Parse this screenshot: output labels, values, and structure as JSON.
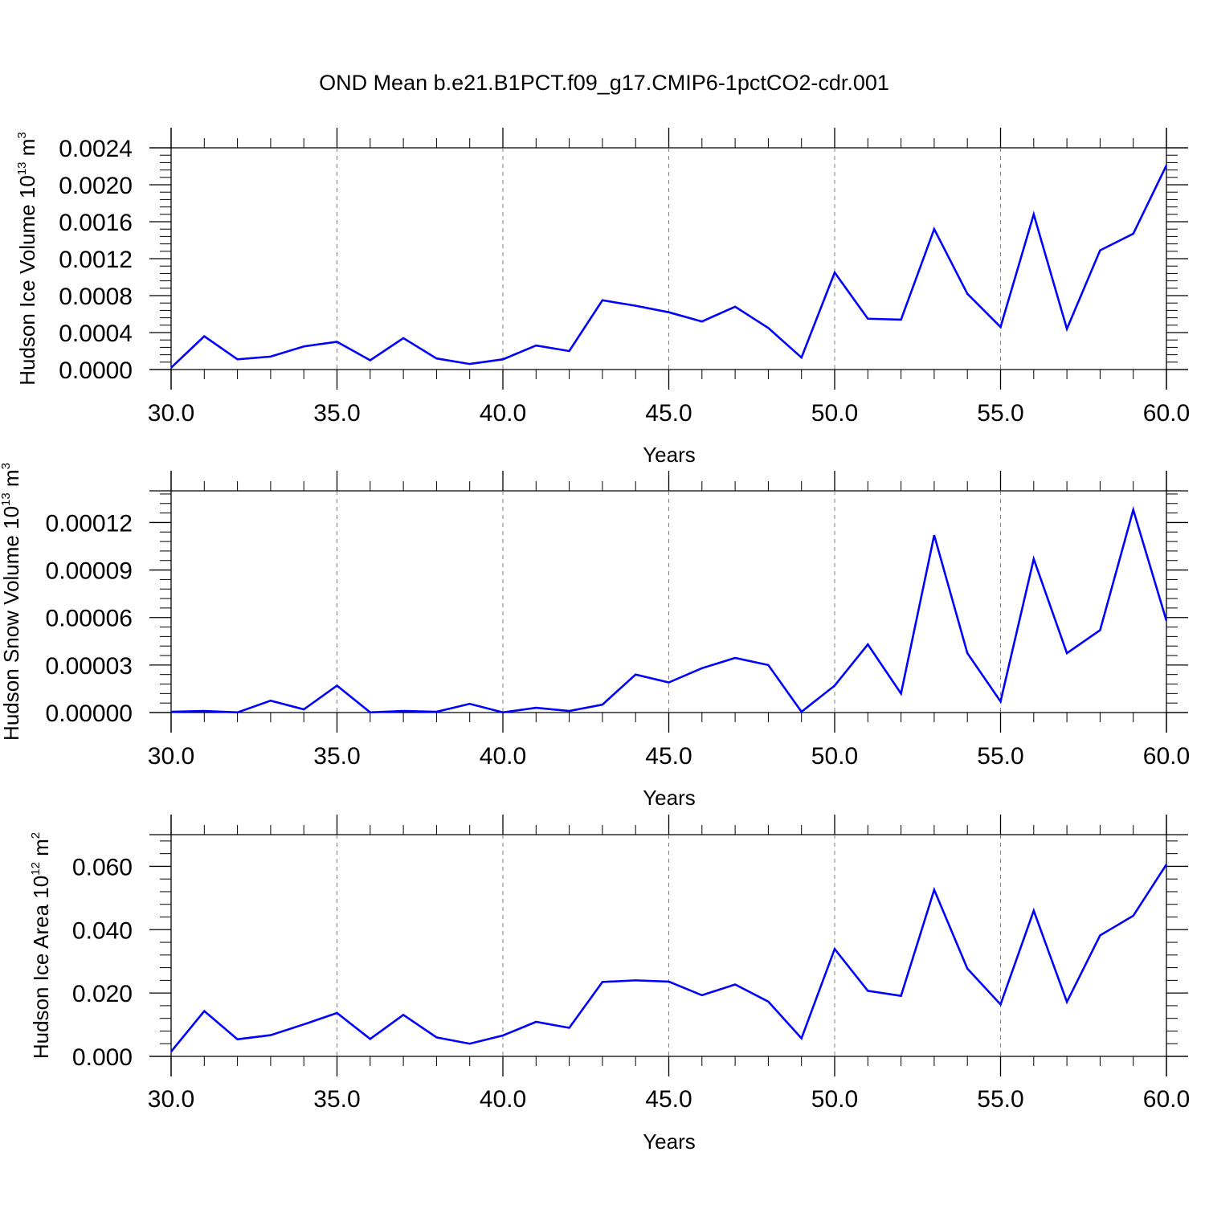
{
  "figure": {
    "title": "OND Mean b.e21.B1PCT.f09_g17.CMIP6-1pctCO2-cdr.001"
  },
  "colors": {
    "series": "#0000ff",
    "axis": "#000000",
    "grid": "#808080",
    "background": "#ffffff"
  },
  "chart_data": [
    {
      "type": "line",
      "xlabel": "Years",
      "ylabel": {
        "text": "Hudson Ice Volume 10",
        "exp": "13",
        "unit": " m",
        "unit_exp": "3"
      },
      "xlim": [
        30,
        60
      ],
      "ylim": [
        0,
        0.0024
      ],
      "xticks": [
        "30.0",
        "35.0",
        "40.0",
        "45.0",
        "50.0",
        "55.0",
        "60.0"
      ],
      "yticks": [
        "0.0000",
        "0.0004",
        "0.0008",
        "0.0012",
        "0.0016",
        "0.0020",
        "0.0024"
      ],
      "grid": "vertical dashed at major x ticks",
      "x": [
        30,
        31,
        32,
        33,
        34,
        35,
        36,
        37,
        38,
        39,
        40,
        41,
        42,
        43,
        44,
        45,
        46,
        47,
        48,
        49,
        50,
        51,
        52,
        53,
        54,
        55,
        56,
        57,
        58,
        59,
        60
      ],
      "values": [
        2e-05,
        0.00036,
        0.00011,
        0.00014,
        0.00025,
        0.0003,
        0.0001,
        0.00034,
        0.00012,
        6e-05,
        0.00011,
        0.00026,
        0.0002,
        0.00075,
        0.00069,
        0.00062,
        0.00052,
        0.00068,
        0.00045,
        0.00013,
        0.00105,
        0.00055,
        0.00054,
        0.00152,
        0.00082,
        0.00046,
        0.00168,
        0.00044,
        0.00129,
        0.00147,
        0.00221
      ]
    },
    {
      "type": "line",
      "xlabel": "Years",
      "ylabel": {
        "text": "Hudson Snow Volume 10",
        "exp": "13",
        "unit": " m",
        "unit_exp": "3"
      },
      "xlim": [
        30,
        60
      ],
      "ylim": [
        0,
        0.00014
      ],
      "xticks": [
        "30.0",
        "35.0",
        "40.0",
        "45.0",
        "50.0",
        "55.0",
        "60.0"
      ],
      "yticks": [
        "0.00000",
        "0.00003",
        "0.00006",
        "0.00009",
        "0.00012"
      ],
      "grid": "vertical dashed at major x ticks",
      "x": [
        30,
        31,
        32,
        33,
        34,
        35,
        36,
        37,
        38,
        39,
        40,
        41,
        42,
        43,
        44,
        45,
        46,
        47,
        48,
        49,
        50,
        51,
        52,
        53,
        54,
        55,
        56,
        57,
        58,
        59,
        60
      ],
      "values": [
        5e-07,
        1e-06,
        1e-07,
        7.5e-06,
        2e-06,
        1.7e-05,
        1e-07,
        1e-06,
        5e-07,
        5.5e-06,
        1e-07,
        3e-06,
        1e-06,
        5e-06,
        2.4e-05,
        1.9e-05,
        2.8e-05,
        3.45e-05,
        3e-05,
        5e-07,
        1.7e-05,
        4.3e-05,
        1.2e-05,
        0.000112,
        3.75e-05,
        7e-06,
        9.7e-05,
        3.75e-05,
        5.2e-05,
        0.000128,
        5.8e-05
      ]
    },
    {
      "type": "line",
      "xlabel": "Years",
      "ylabel": {
        "text": "Hudson Ice Area 10",
        "exp": "12",
        "unit": " m",
        "unit_exp": "2"
      },
      "xlim": [
        30,
        60
      ],
      "ylim": [
        0,
        0.07
      ],
      "xticks": [
        "30.0",
        "35.0",
        "40.0",
        "45.0",
        "50.0",
        "55.0",
        "60.0"
      ],
      "yticks": [
        "0.000",
        "0.020",
        "0.040",
        "0.060"
      ],
      "grid": "vertical dashed at major x ticks",
      "x": [
        30,
        31,
        32,
        33,
        34,
        35,
        36,
        37,
        38,
        39,
        40,
        41,
        42,
        43,
        44,
        45,
        46,
        47,
        48,
        49,
        50,
        51,
        52,
        53,
        54,
        55,
        56,
        57,
        58,
        59,
        60
      ],
      "values": [
        0.0015,
        0.0143,
        0.0054,
        0.0067,
        0.0101,
        0.0137,
        0.0055,
        0.0131,
        0.006,
        0.004,
        0.0066,
        0.0109,
        0.009,
        0.0235,
        0.024,
        0.0236,
        0.0193,
        0.0227,
        0.0173,
        0.0057,
        0.0339,
        0.0207,
        0.0191,
        0.0526,
        0.0277,
        0.0164,
        0.046,
        0.0172,
        0.0382,
        0.0444,
        0.0606
      ]
    }
  ]
}
